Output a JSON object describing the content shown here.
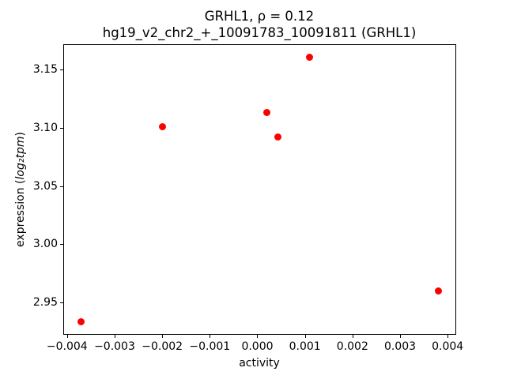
{
  "chart_data": {
    "type": "scatter",
    "title_lines": [
      "GRHL1, ρ = 0.12",
      "hg19_v2_chr2_+_10091783_10091811 (GRHL1)"
    ],
    "title": "GRHL1, ρ = 0.12\nhg19_v2_chr2_+_10091783_10091811 (GRHL1)",
    "xlabel": "activity",
    "ylabel": "expression (log₂tpm)",
    "ylabel_parts": {
      "prefix": "expression (",
      "math": "log₂tpm",
      "suffix": ")"
    },
    "xlim": [
      -0.00408,
      0.00418
    ],
    "ylim": [
      2.922,
      3.172
    ],
    "x_ticks": [
      -0.004,
      -0.003,
      -0.002,
      -0.001,
      0.0,
      0.001,
      0.002,
      0.003,
      0.004
    ],
    "x_tick_labels": [
      "−0.004",
      "−0.003",
      "−0.002",
      "−0.001",
      "0.000",
      "0.001",
      "0.002",
      "0.003",
      "0.004"
    ],
    "y_ticks": [
      2.95,
      3.0,
      3.05,
      3.1,
      3.15
    ],
    "y_tick_labels": [
      "2.95",
      "3.00",
      "3.05",
      "3.10",
      "3.15"
    ],
    "points": [
      {
        "x": -0.0037,
        "y": 2.933
      },
      {
        "x": -0.002,
        "y": 3.101
      },
      {
        "x": 0.0002,
        "y": 3.113
      },
      {
        "x": 0.00043,
        "y": 3.092
      },
      {
        "x": 0.0011,
        "y": 3.161
      },
      {
        "x": 0.0038,
        "y": 2.96
      }
    ],
    "marker_color": "#ff0000",
    "grid": false,
    "legend": null
  }
}
